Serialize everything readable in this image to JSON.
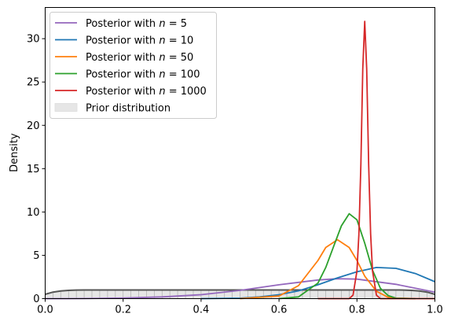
{
  "chart_data": {
    "type": "line",
    "title": "",
    "xlabel": "",
    "ylabel": "Density",
    "xlim": [
      0.0,
      1.0
    ],
    "ylim": [
      0,
      33.6
    ],
    "xticks": [
      "0.0",
      "0.2",
      "0.4",
      "0.6",
      "0.8",
      "1.0"
    ],
    "yticks": [
      "0",
      "5",
      "10",
      "15",
      "20",
      "25",
      "30"
    ],
    "grid": false,
    "legend_position": "top-left",
    "series": [
      {
        "name_prefix": "Posterior with ",
        "name_var": "n",
        "name_eq": " = ",
        "name_val": "5",
        "color": "#9467bd",
        "x": [
          0.0,
          0.05,
          0.1,
          0.2,
          0.3,
          0.4,
          0.5,
          0.6,
          0.7,
          0.75,
          0.8,
          0.9,
          1.0
        ],
        "y": [
          0.0,
          0.0,
          0.01,
          0.06,
          0.2,
          0.45,
          0.95,
          1.6,
          2.15,
          2.3,
          2.25,
          1.65,
          0.75
        ]
      },
      {
        "name_prefix": "Posterior with ",
        "name_var": "n",
        "name_eq": " = ",
        "name_val": "10",
        "color": "#1f77b4",
        "x": [
          0.4,
          0.5,
          0.55,
          0.6,
          0.65,
          0.7,
          0.75,
          0.8,
          0.85,
          0.9,
          0.95,
          1.0
        ],
        "y": [
          0.0,
          0.05,
          0.2,
          0.45,
          0.9,
          1.6,
          2.4,
          3.1,
          3.6,
          3.5,
          2.9,
          1.95
        ]
      },
      {
        "name_prefix": "Posterior with ",
        "name_var": "n",
        "name_eq": " = ",
        "name_val": "50",
        "color": "#ff7f0e",
        "x": [
          0.5,
          0.6,
          0.65,
          0.7,
          0.72,
          0.75,
          0.78,
          0.8,
          0.82,
          0.85,
          0.88,
          0.9,
          0.95
        ],
        "y": [
          0.0,
          0.3,
          1.5,
          4.4,
          5.9,
          6.8,
          5.9,
          4.4,
          2.6,
          0.85,
          0.15,
          0.05,
          0.0
        ]
      },
      {
        "name_prefix": "Posterior with ",
        "name_var": "n",
        "name_eq": " = ",
        "name_val": "100",
        "color": "#2ca02c",
        "x": [
          0.6,
          0.65,
          0.7,
          0.72,
          0.74,
          0.76,
          0.78,
          0.8,
          0.82,
          0.84,
          0.86,
          0.88,
          0.9,
          0.95
        ],
        "y": [
          0.0,
          0.2,
          1.8,
          3.6,
          6.0,
          8.4,
          9.8,
          9.1,
          6.4,
          3.3,
          1.2,
          0.35,
          0.05,
          0.0
        ]
      },
      {
        "name_prefix": "Posterior with ",
        "name_var": "n",
        "name_eq": " = ",
        "name_val": "1000",
        "color": "#d62728",
        "x": [
          0.7,
          0.78,
          0.79,
          0.8,
          0.805,
          0.81,
          0.815,
          0.82,
          0.825,
          0.83,
          0.835,
          0.84,
          0.85,
          0.86,
          1.0
        ],
        "y": [
          0.0,
          0.0,
          0.4,
          3.2,
          7.5,
          15.5,
          26.5,
          32.0,
          26.5,
          15.5,
          7.5,
          3.2,
          0.4,
          0.0,
          0.0
        ]
      }
    ],
    "prior": {
      "name": "Prior distribution",
      "fill_color": "#e6e6e6",
      "edge_color": "#555555",
      "x": [
        0.0,
        0.02,
        0.04,
        0.06,
        0.08,
        0.1,
        0.5,
        0.9,
        0.92,
        0.94,
        0.96,
        0.98,
        1.0
      ],
      "y": [
        0.5,
        0.75,
        0.88,
        0.95,
        0.99,
        1.0,
        1.0,
        1.0,
        0.99,
        0.95,
        0.88,
        0.75,
        0.5
      ]
    }
  }
}
